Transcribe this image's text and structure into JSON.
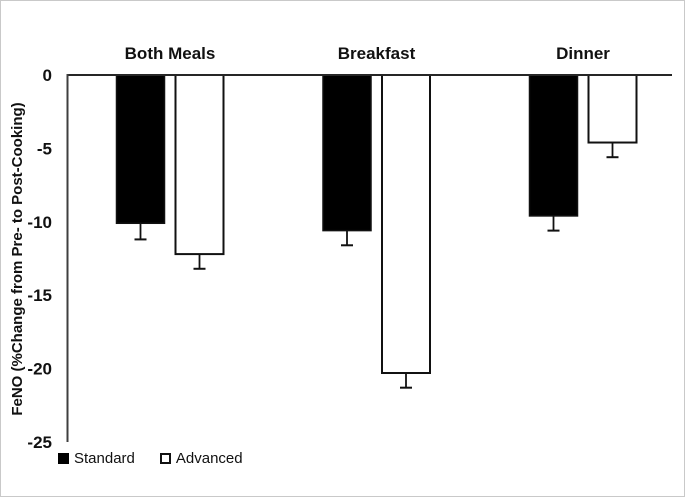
{
  "chart_data": {
    "type": "bar",
    "title": "",
    "categories": [
      "Both Meals",
      "Breakfast",
      "Dinner"
    ],
    "series": [
      {
        "name": "Standard",
        "fill": "#000000",
        "values": [
          -10.1,
          -10.6,
          -9.6
        ],
        "errors": [
          1.1,
          1.0,
          1.0
        ]
      },
      {
        "name": "Advanced",
        "fill": "#ffffff",
        "values": [
          -12.2,
          -20.3,
          -4.6
        ],
        "errors": [
          1.0,
          1.0,
          1.0
        ]
      }
    ],
    "xlabel": "",
    "ylabel": "FeNO (%Change from Pre- to Post-Cooking)",
    "yticks": [
      0,
      -5,
      -10,
      -15,
      -20,
      -25
    ],
    "ylim": [
      -25,
      0
    ],
    "grid": false,
    "error_bars": "lower-only",
    "legend_position": "bottom-left",
    "colors": {
      "axis": "#3f3f3f",
      "bar_outline": "#111111",
      "text": "#111111"
    }
  }
}
